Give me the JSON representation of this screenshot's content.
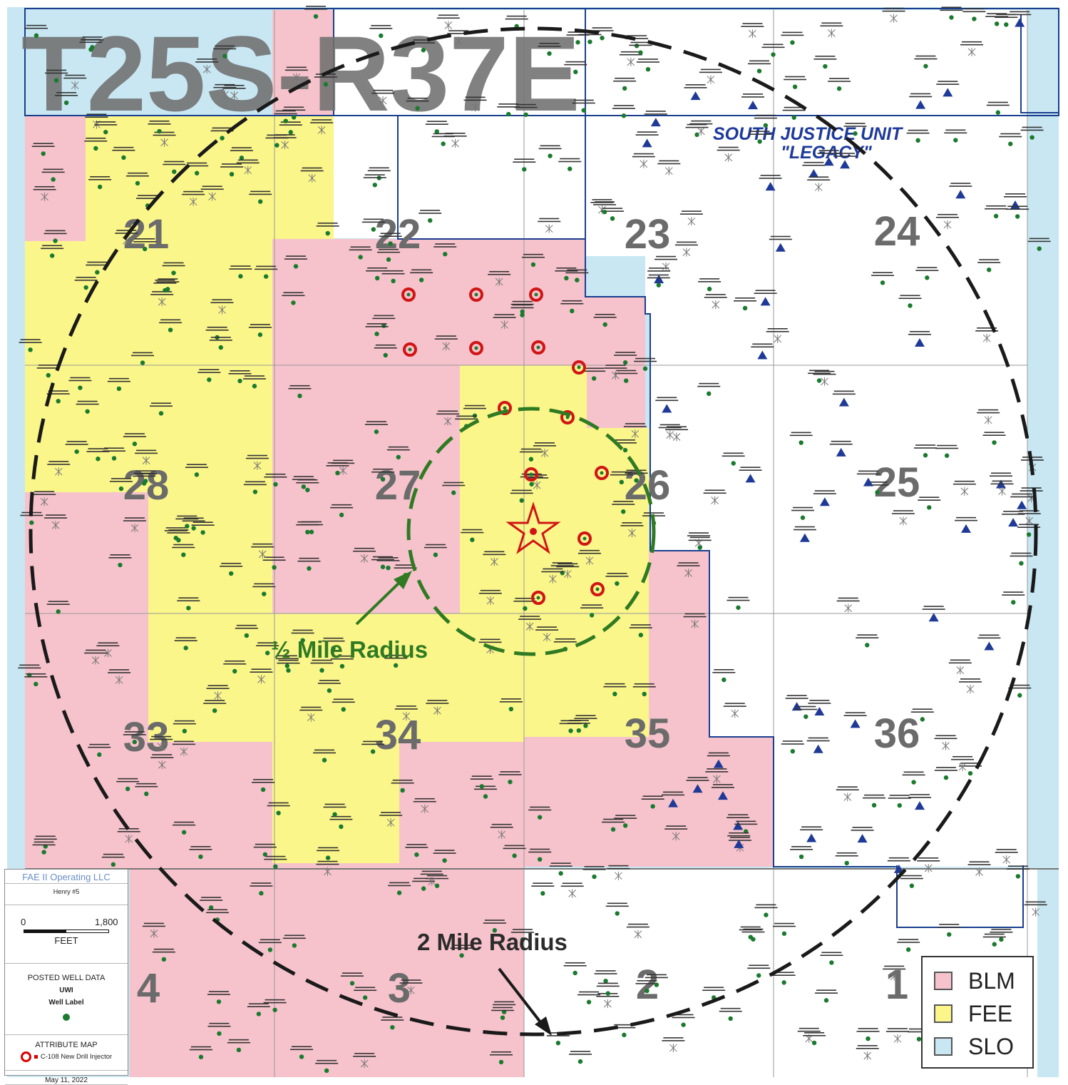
{
  "map": {
    "title": "T25S-R37E",
    "unit_name_line1": "SOUTH JUSTICE UNIT",
    "unit_name_line2": "\"LEGACY\"",
    "section_numbers": [
      "21",
      "22",
      "23",
      "24",
      "28",
      "27",
      "26",
      "25",
      "33",
      "34",
      "35",
      "36",
      "4",
      "3",
      "2",
      "1"
    ],
    "radius_labels": {
      "half_mile": "½ Mile Radius",
      "two_mile": "2 Mile Radius"
    },
    "colors": {
      "blm": "#f6c3cc",
      "fee": "#fbf68a",
      "slo": "#c8e7f3",
      "half_mile_circle": "#2f7a22",
      "two_mile_circle": "#1a1a1a",
      "section_line": "#1a3f8f",
      "injector": "#d01515",
      "well_green": "#1a7a2e",
      "well_triangle": "#1f3a96"
    },
    "icons": [
      "proposed-well-star-icon",
      "injector-well-icon",
      "oil-well-icon",
      "unit-well-triangle-icon"
    ]
  },
  "info_box": {
    "operator": "FAE II Operating LLC",
    "project": "Henry #5",
    "scale_start": "0",
    "scale_end": "1,800",
    "scale_unit": "FEET",
    "posted_heading": "POSTED WELL DATA",
    "posted_sub1": "UWI",
    "posted_sub2": "Well Label",
    "attribute_heading": "ATTRIBUTE MAP",
    "attribute_item": "C-108 New Drill Injector",
    "date": "May 11, 2022"
  },
  "legend": {
    "items": [
      {
        "label": "BLM",
        "color": "#f6c3cc"
      },
      {
        "label": "FEE",
        "color": "#fbf68a"
      },
      {
        "label": "SLO",
        "color": "#c8e7f3"
      }
    ]
  }
}
